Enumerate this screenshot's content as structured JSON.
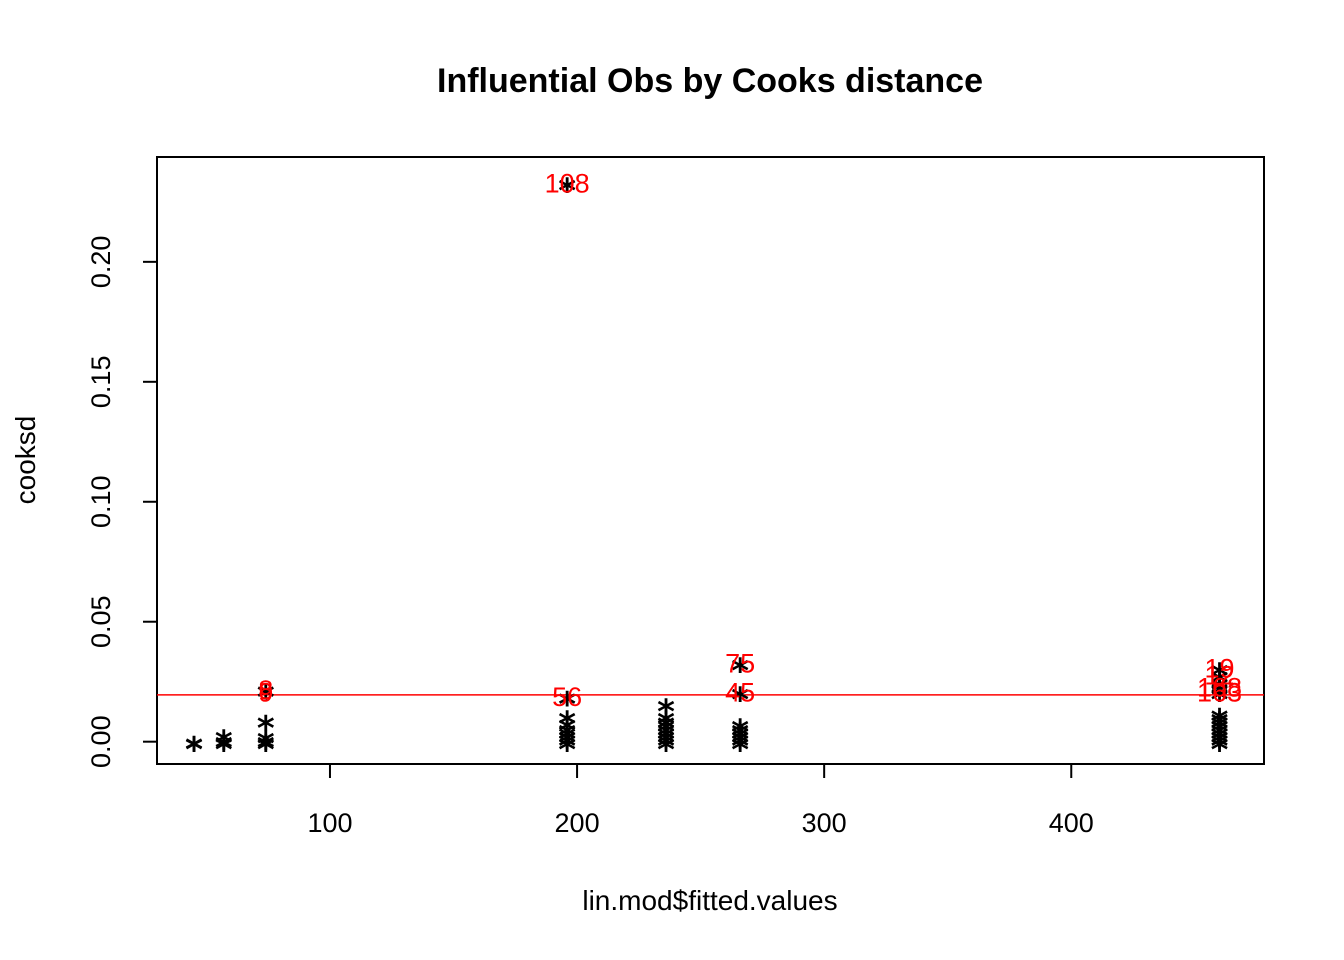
{
  "chart_data": {
    "type": "scatter",
    "title": "Influential Obs by Cooks distance",
    "xlabel": "lin.mod$fitted.values",
    "ylabel": "cooksd",
    "xlim": [
      30,
      478
    ],
    "ylim": [
      -0.0093,
      0.2437
    ],
    "x_ticks": [
      100,
      200,
      300,
      400
    ],
    "y_ticks": [
      0.0,
      0.05,
      0.1,
      0.15,
      0.2
    ],
    "x_tick_labels": [
      "100",
      "200",
      "300",
      "400"
    ],
    "y_tick_labels": [
      "0.00",
      "0.05",
      "0.10",
      "0.15",
      "0.20"
    ],
    "marker": "*",
    "marker_color": "#000000",
    "threshold_line": {
      "y": 0.0195,
      "color": "#ff0000"
    },
    "grid": false,
    "box": true,
    "points": [
      {
        "x": 45,
        "y": 0.0
      },
      {
        "x": 45,
        "y": 0.0002
      },
      {
        "x": 57,
        "y": 0.0
      },
      {
        "x": 57,
        "y": 0.001
      },
      {
        "x": 57,
        "y": 0.003
      },
      {
        "x": 74,
        "y": 0.0
      },
      {
        "x": 74,
        "y": 0.001
      },
      {
        "x": 74,
        "y": 0.0025
      },
      {
        "x": 74,
        "y": 0.009
      },
      {
        "x": 74,
        "y": 0.022
      },
      {
        "x": 196,
        "y": 0.0
      },
      {
        "x": 196,
        "y": 0.0015
      },
      {
        "x": 196,
        "y": 0.003
      },
      {
        "x": 196,
        "y": 0.0045
      },
      {
        "x": 196,
        "y": 0.006
      },
      {
        "x": 196,
        "y": 0.008
      },
      {
        "x": 196,
        "y": 0.011
      },
      {
        "x": 196,
        "y": 0.019
      },
      {
        "x": 196,
        "y": 0.233
      },
      {
        "x": 236,
        "y": 0.0
      },
      {
        "x": 236,
        "y": 0.0015
      },
      {
        "x": 236,
        "y": 0.003
      },
      {
        "x": 236,
        "y": 0.0045
      },
      {
        "x": 236,
        "y": 0.006
      },
      {
        "x": 236,
        "y": 0.0075
      },
      {
        "x": 236,
        "y": 0.009
      },
      {
        "x": 236,
        "y": 0.011
      },
      {
        "x": 236,
        "y": 0.016
      },
      {
        "x": 266,
        "y": 0.0
      },
      {
        "x": 266,
        "y": 0.0015
      },
      {
        "x": 266,
        "y": 0.003
      },
      {
        "x": 266,
        "y": 0.0045
      },
      {
        "x": 266,
        "y": 0.006
      },
      {
        "x": 266,
        "y": 0.0075
      },
      {
        "x": 266,
        "y": 0.021
      },
      {
        "x": 266,
        "y": 0.033
      },
      {
        "x": 460,
        "y": 0.0
      },
      {
        "x": 460,
        "y": 0.0015
      },
      {
        "x": 460,
        "y": 0.003
      },
      {
        "x": 460,
        "y": 0.0045
      },
      {
        "x": 460,
        "y": 0.006
      },
      {
        "x": 460,
        "y": 0.0075
      },
      {
        "x": 460,
        "y": 0.009
      },
      {
        "x": 460,
        "y": 0.0105
      },
      {
        "x": 460,
        "y": 0.012
      },
      {
        "x": 460,
        "y": 0.021
      },
      {
        "x": 460,
        "y": 0.023
      },
      {
        "x": 460,
        "y": 0.025
      },
      {
        "x": 460,
        "y": 0.028
      },
      {
        "x": 460,
        "y": 0.031
      }
    ],
    "labels": [
      {
        "text": "108",
        "x": 196,
        "y": 0.233
      },
      {
        "text": "8",
        "x": 74,
        "y": 0.022
      },
      {
        "text": "9",
        "x": 74,
        "y": 0.021
      },
      {
        "text": "56",
        "x": 196,
        "y": 0.019
      },
      {
        "text": "75",
        "x": 266,
        "y": 0.033
      },
      {
        "text": "45",
        "x": 266,
        "y": 0.021
      },
      {
        "text": "19",
        "x": 460,
        "y": 0.031
      },
      {
        "text": "12",
        "x": 460,
        "y": 0.028
      },
      {
        "text": "168",
        "x": 460,
        "y": 0.023
      },
      {
        "text": "163",
        "x": 460,
        "y": 0.021
      }
    ]
  }
}
